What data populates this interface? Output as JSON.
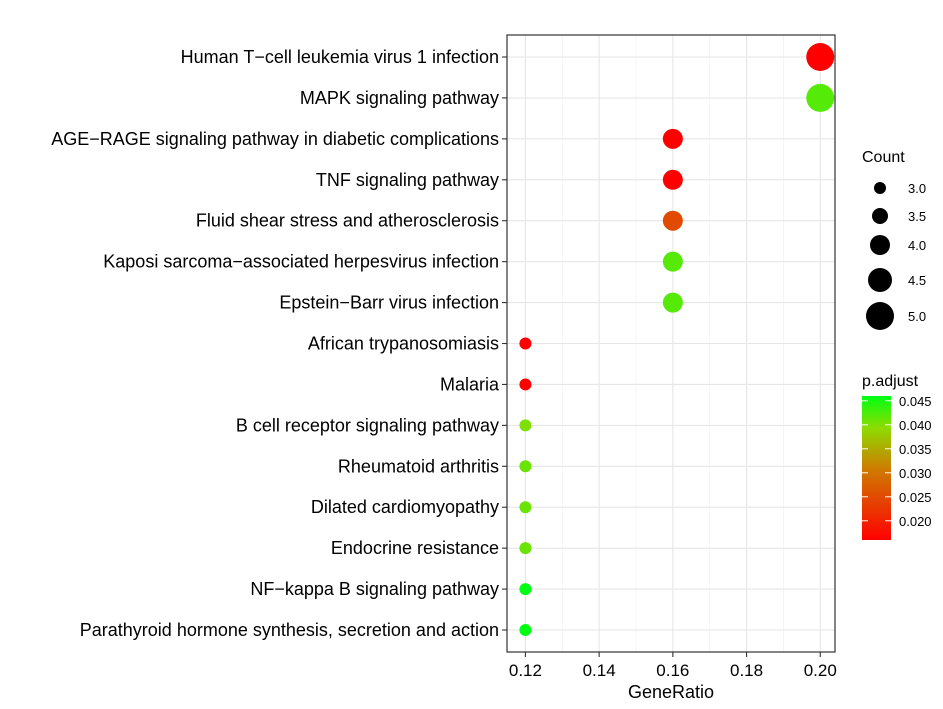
{
  "chart_data": {
    "type": "scatter",
    "xlabel": "GeneRatio",
    "ylabel": "",
    "xlim": [
      0.115,
      0.204
    ],
    "x_ticks": [
      "0.12",
      "0.14",
      "0.16",
      "0.18",
      "0.20"
    ],
    "x_tick_values": [
      0.12,
      0.14,
      0.16,
      0.18,
      0.2
    ],
    "grid": true,
    "legend_position": "right",
    "categories": [
      "Human T−cell leukemia virus 1 infection",
      "MAPK signaling pathway",
      "AGE−RAGE signaling pathway in diabetic complications",
      "TNF signaling pathway",
      "Fluid shear stress and atherosclerosis",
      "Kaposi sarcoma−associated herpesvirus infection",
      "Epstein−Barr virus infection",
      "African trypanosomiasis",
      "Malaria",
      "B cell receptor signaling pathway",
      "Rheumatoid arthritis",
      "Dilated cardiomyopathy",
      "Endocrine resistance",
      "NF−kappa B signaling pathway",
      "Parathyroid hormone synthesis, secretion and action"
    ],
    "points": [
      {
        "term": "Human T−cell leukemia virus 1 infection",
        "gene_ratio": 0.2,
        "count": 5,
        "p_adjust": 0.016
      },
      {
        "term": "MAPK signaling pathway",
        "gene_ratio": 0.2,
        "count": 5,
        "p_adjust": 0.042
      },
      {
        "term": "AGE−RAGE signaling pathway in diabetic complications",
        "gene_ratio": 0.16,
        "count": 4,
        "p_adjust": 0.016
      },
      {
        "term": "TNF signaling pathway",
        "gene_ratio": 0.16,
        "count": 4,
        "p_adjust": 0.016
      },
      {
        "term": "Fluid shear stress and atherosclerosis",
        "gene_ratio": 0.16,
        "count": 4,
        "p_adjust": 0.025
      },
      {
        "term": "Kaposi sarcoma−associated herpesvirus infection",
        "gene_ratio": 0.16,
        "count": 4,
        "p_adjust": 0.042
      },
      {
        "term": "Epstein−Barr virus infection",
        "gene_ratio": 0.16,
        "count": 4,
        "p_adjust": 0.042
      },
      {
        "term": "African trypanosomiasis",
        "gene_ratio": 0.12,
        "count": 3,
        "p_adjust": 0.016
      },
      {
        "term": "Malaria",
        "gene_ratio": 0.12,
        "count": 3,
        "p_adjust": 0.016
      },
      {
        "term": "B cell receptor signaling pathway",
        "gene_ratio": 0.12,
        "count": 3,
        "p_adjust": 0.04
      },
      {
        "term": "Rheumatoid arthritis",
        "gene_ratio": 0.12,
        "count": 3,
        "p_adjust": 0.041
      },
      {
        "term": "Dilated cardiomyopathy",
        "gene_ratio": 0.12,
        "count": 3,
        "p_adjust": 0.041
      },
      {
        "term": "Endocrine resistance",
        "gene_ratio": 0.12,
        "count": 3,
        "p_adjust": 0.041
      },
      {
        "term": "NF−kappa B signaling pathway",
        "gene_ratio": 0.12,
        "count": 3,
        "p_adjust": 0.046
      },
      {
        "term": "Parathyroid hormone synthesis, secretion and action",
        "gene_ratio": 0.12,
        "count": 3,
        "p_adjust": 0.046
      }
    ],
    "size_legend": {
      "title": "Count",
      "values": [
        3.0,
        3.5,
        4.0,
        4.5,
        5.0
      ],
      "labels": [
        "3.0",
        "3.5",
        "4.0",
        "4.5",
        "5.0"
      ]
    },
    "color_legend": {
      "title": "p.adjust",
      "range": [
        0.016,
        0.046
      ],
      "ticks": [
        0.045,
        0.04,
        0.035,
        0.03,
        0.025,
        0.02
      ],
      "labels": [
        "0.045",
        "0.040",
        "0.035",
        "0.030",
        "0.025",
        "0.020"
      ],
      "low_color": "#ff0000",
      "high_color": "#00ff00"
    }
  }
}
